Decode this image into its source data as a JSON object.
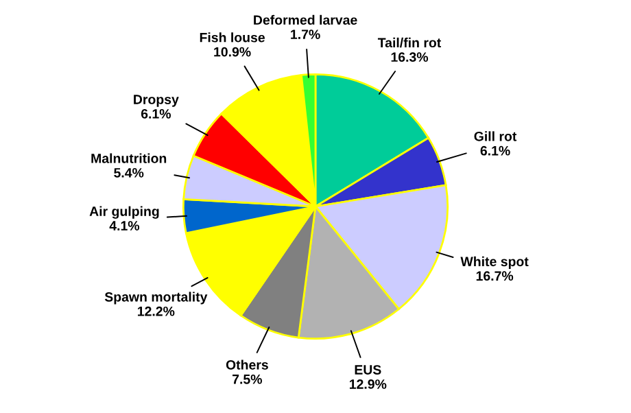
{
  "chart_data": {
    "type": "pie",
    "categories": [
      "Tail/fin rot",
      "Gill rot",
      "White spot",
      "EUS",
      "Others",
      "Spawn mortality",
      "Air gulping",
      "Malnutrition",
      "Dropsy",
      "Fish louse",
      "Deformed larvae"
    ],
    "values": [
      16.3,
      6.1,
      16.7,
      12.9,
      7.5,
      12.2,
      4.1,
      5.4,
      6.1,
      10.9,
      1.7
    ],
    "value_labels": [
      "16.3%",
      "6.1%",
      "16.7%",
      "12.9%",
      "7.5%",
      "12.2%",
      "4.1%",
      "5.4%",
      "6.1%",
      "10.9%",
      "1.7%"
    ],
    "colors": [
      "#00cc99",
      "#3333cc",
      "#ccccff",
      "#b2b2b2",
      "#808080",
      "#ffff00",
      "#0066cc",
      "#ccccff",
      "#ff0000",
      "#ffff00",
      "#33ff33"
    ],
    "legend": false
  }
}
